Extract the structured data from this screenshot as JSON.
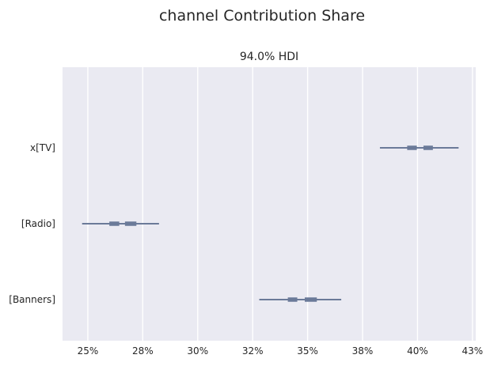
{
  "figure": {
    "title": "channel Contribution Share"
  },
  "chart_data": {
    "type": "forest",
    "title": "94.0% HDI",
    "xlabel": "",
    "ylabel": "",
    "x_ticks": [
      0.25,
      0.275,
      0.3,
      0.325,
      0.35,
      0.375,
      0.4,
      0.425
    ],
    "x_tick_labels": [
      "25%",
      "28%",
      "30%",
      "32%",
      "35%",
      "38%",
      "40%",
      "43%"
    ],
    "xlim": [
      0.2385,
      0.4265
    ],
    "grid": true,
    "series_color": "#6b7a99",
    "categories": [
      "x[TV]",
      "[Radio]",
      "[Banners]"
    ],
    "intervals": [
      {
        "label": "x[TV]",
        "hdi_94": [
          0.3829,
          0.4187
        ],
        "interquartile_segments": [
          [
            0.3953,
            0.3997
          ],
          [
            0.4027,
            0.407
          ]
        ]
      },
      {
        "label": "[Radio]",
        "hdi_94": [
          0.2474,
          0.2824
        ],
        "interquartile_segments": [
          [
            0.2598,
            0.2643
          ],
          [
            0.2669,
            0.2721
          ]
        ]
      },
      {
        "label": "[Banners]",
        "hdi_94": [
          0.328,
          0.3653
        ],
        "interquartile_segments": [
          [
            0.341,
            0.3453
          ],
          [
            0.3487,
            0.3542
          ]
        ]
      }
    ]
  }
}
